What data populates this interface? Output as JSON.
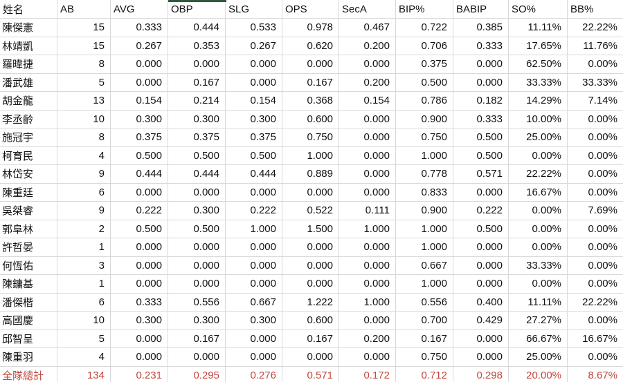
{
  "table": {
    "columns": [
      "姓名",
      "AB",
      "AVG",
      "OBP",
      "SLG",
      "OPS",
      "SecA",
      "BIP%",
      "BABIP",
      "SO%",
      "BB%"
    ],
    "rows": [
      [
        "陳傑憲",
        "15",
        "0.333",
        "0.444",
        "0.533",
        "0.978",
        "0.467",
        "0.722",
        "0.385",
        "11.11%",
        "22.22%"
      ],
      [
        "林靖凱",
        "15",
        "0.267",
        "0.353",
        "0.267",
        "0.620",
        "0.200",
        "0.706",
        "0.333",
        "17.65%",
        "11.76%"
      ],
      [
        "羅暐捷",
        "8",
        "0.000",
        "0.000",
        "0.000",
        "0.000",
        "0.000",
        "0.375",
        "0.000",
        "62.50%",
        "0.00%"
      ],
      [
        "潘武雄",
        "5",
        "0.000",
        "0.167",
        "0.000",
        "0.167",
        "0.200",
        "0.500",
        "0.000",
        "33.33%",
        "33.33%"
      ],
      [
        "胡金龍",
        "13",
        "0.154",
        "0.214",
        "0.154",
        "0.368",
        "0.154",
        "0.786",
        "0.182",
        "14.29%",
        "7.14%"
      ],
      [
        "李丞齡",
        "10",
        "0.300",
        "0.300",
        "0.300",
        "0.600",
        "0.000",
        "0.900",
        "0.333",
        "10.00%",
        "0.00%"
      ],
      [
        "施冠宇",
        "8",
        "0.375",
        "0.375",
        "0.375",
        "0.750",
        "0.000",
        "0.750",
        "0.500",
        "25.00%",
        "0.00%"
      ],
      [
        "柯育民",
        "4",
        "0.500",
        "0.500",
        "0.500",
        "1.000",
        "0.000",
        "1.000",
        "0.500",
        "0.00%",
        "0.00%"
      ],
      [
        "林岱安",
        "9",
        "0.444",
        "0.444",
        "0.444",
        "0.889",
        "0.000",
        "0.778",
        "0.571",
        "22.22%",
        "0.00%"
      ],
      [
        "陳重廷",
        "6",
        "0.000",
        "0.000",
        "0.000",
        "0.000",
        "0.000",
        "0.833",
        "0.000",
        "16.67%",
        "0.00%"
      ],
      [
        "吳桀睿",
        "9",
        "0.222",
        "0.300",
        "0.222",
        "0.522",
        "0.111",
        "0.900",
        "0.222",
        "0.00%",
        "7.69%"
      ],
      [
        "郭阜林",
        "2",
        "0.500",
        "0.500",
        "1.000",
        "1.500",
        "1.000",
        "1.000",
        "0.500",
        "0.00%",
        "0.00%"
      ],
      [
        "許哲晏",
        "1",
        "0.000",
        "0.000",
        "0.000",
        "0.000",
        "0.000",
        "1.000",
        "0.000",
        "0.00%",
        "0.00%"
      ],
      [
        "何恆佑",
        "3",
        "0.000",
        "0.000",
        "0.000",
        "0.000",
        "0.000",
        "0.667",
        "0.000",
        "33.33%",
        "0.00%"
      ],
      [
        "陳鏞基",
        "1",
        "0.000",
        "0.000",
        "0.000",
        "0.000",
        "0.000",
        "1.000",
        "0.000",
        "0.00%",
        "0.00%"
      ],
      [
        "潘傑楷",
        "6",
        "0.333",
        "0.556",
        "0.667",
        "1.222",
        "1.000",
        "0.556",
        "0.400",
        "11.11%",
        "22.22%"
      ],
      [
        "高國慶",
        "10",
        "0.300",
        "0.300",
        "0.300",
        "0.600",
        "0.000",
        "0.700",
        "0.429",
        "27.27%",
        "0.00%"
      ],
      [
        "邱智呈",
        "5",
        "0.000",
        "0.167",
        "0.000",
        "0.167",
        "0.200",
        "0.167",
        "0.000",
        "66.67%",
        "16.67%"
      ],
      [
        "陳重羽",
        "4",
        "0.000",
        "0.000",
        "0.000",
        "0.000",
        "0.000",
        "0.750",
        "0.000",
        "25.00%",
        "0.00%"
      ]
    ],
    "total": [
      "全隊總計",
      "134",
      "0.231",
      "0.295",
      "0.276",
      "0.571",
      "0.172",
      "0.712",
      "0.298",
      "20.00%",
      "8.67%"
    ]
  },
  "colors": {
    "total_row_text": "#c2473d",
    "gridline": "#d9d9d9",
    "active_cell_border": "#2d5a3c",
    "text": "#111111",
    "background": "#ffffff"
  }
}
